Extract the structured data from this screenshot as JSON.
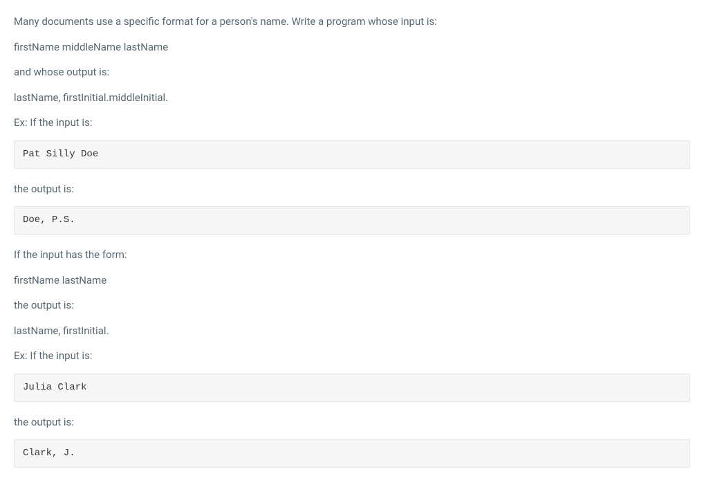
{
  "paragraphs": {
    "intro": "Many documents use a specific format for a person's name. Write a program whose input is:",
    "input_format_1": "firstName middleName lastName",
    "output_label_1": "and whose output is:",
    "output_format_1": "lastName, firstInitial.middleInitial.",
    "example_label_1": "Ex: If the input is:",
    "result_label_1": "the output is:",
    "alt_form_label": "If the input has the form:",
    "input_format_2": "firstName lastName",
    "output_label_2": "the output is:",
    "output_format_2": "lastName, firstInitial.",
    "example_label_2": "Ex: If the input is:",
    "result_label_2": "the output is:"
  },
  "code_blocks": {
    "example_input_1": "Pat Silly Doe",
    "example_output_1": "Doe, P.S.",
    "example_input_2": "Julia Clark",
    "example_output_2": "Clark, J."
  },
  "styles": {
    "text_color": "#576871",
    "code_bg": "#f7f7f7",
    "code_border": "#e5e5e5",
    "code_text": "#333333",
    "body_bg": "#ffffff",
    "font_size_body": 15,
    "font_size_code": 14
  }
}
